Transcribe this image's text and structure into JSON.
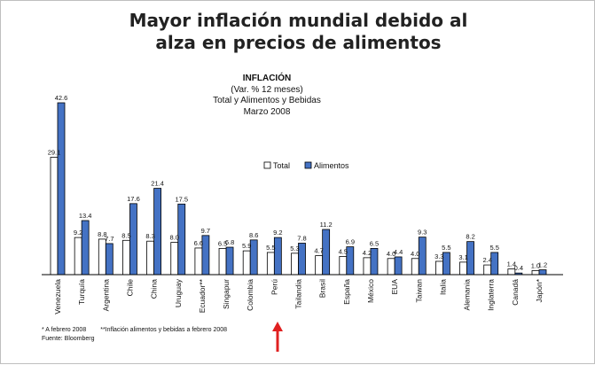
{
  "title_lines": [
    "Mayor inflación mundial debido al",
    "alza en precios de  alimentos"
  ],
  "colors": {
    "total": "#ffffff",
    "alimentos": "#4472c4",
    "axis": "#000000",
    "arrow": "#e02020"
  },
  "chart_data": {
    "type": "bar",
    "title": "INFLACIÓN",
    "subtitle_lines": [
      "(Var. % 12 meses)",
      "Total y Alimentos y Bebidas",
      "Marzo 2008"
    ],
    "xlabel": "",
    "ylabel": "",
    "ylim": [
      0,
      45
    ],
    "grid": false,
    "legend": {
      "placement": "top-center",
      "entries": [
        "Total",
        "Alimentos"
      ]
    },
    "categories": [
      "Venezuela",
      "Turquía",
      "Argentina",
      "Chile",
      "China",
      "Uruguay",
      "Ecuador**",
      "Singapur",
      "Colombia",
      "Perú",
      "Tailandia",
      "Brasil",
      "España",
      "México",
      "EUA",
      "Taiwan",
      "Italia",
      "Alemania",
      "Inglaterra",
      "Canadá",
      "Japón*"
    ],
    "series": [
      {
        "name": "Total",
        "values": [
          29.1,
          9.2,
          8.8,
          8.5,
          8.3,
          8.0,
          6.6,
          6.5,
          5.9,
          5.5,
          5.3,
          4.7,
          4.5,
          4.2,
          4.0,
          4.0,
          3.3,
          3.1,
          2.4,
          1.4,
          1.0
        ]
      },
      {
        "name": "Alimentos",
        "values": [
          42.6,
          13.4,
          7.7,
          17.6,
          21.4,
          17.5,
          9.7,
          6.8,
          8.6,
          9.2,
          7.8,
          11.2,
          6.9,
          6.5,
          4.4,
          9.3,
          5.5,
          8.2,
          5.5,
          0.4,
          1.2
        ]
      }
    ],
    "total_labels": [
      "29.1",
      "9.2",
      "8.8",
      "8.5",
      "8.3",
      "8.0",
      "6.6",
      "6.5",
      "5.9",
      "5.5",
      "5.3",
      "4.7",
      "4.5",
      "4.2",
      "4.0",
      "4.0",
      "3.3",
      "3.1",
      "2.4",
      "1.4",
      "1.0"
    ],
    "alimentos_labels": [
      "42.6",
      "13.4",
      "7.7",
      "17.6",
      "21.4",
      "17.5",
      "9.7",
      "6.8",
      "8.6",
      "9.2",
      "7.8",
      "11.2",
      "6.9",
      "6.5",
      "4.4",
      "9.3",
      "5.5",
      "8.2",
      "5.5",
      "0.4",
      "1.2"
    ],
    "highlight_category": "Perú"
  },
  "notes": {
    "footnote_1": "* A febrero 2008",
    "footnote_2": "**Inflación alimentos y bebidas a febrero 2008",
    "source": "Fuente: Bloomberg"
  }
}
